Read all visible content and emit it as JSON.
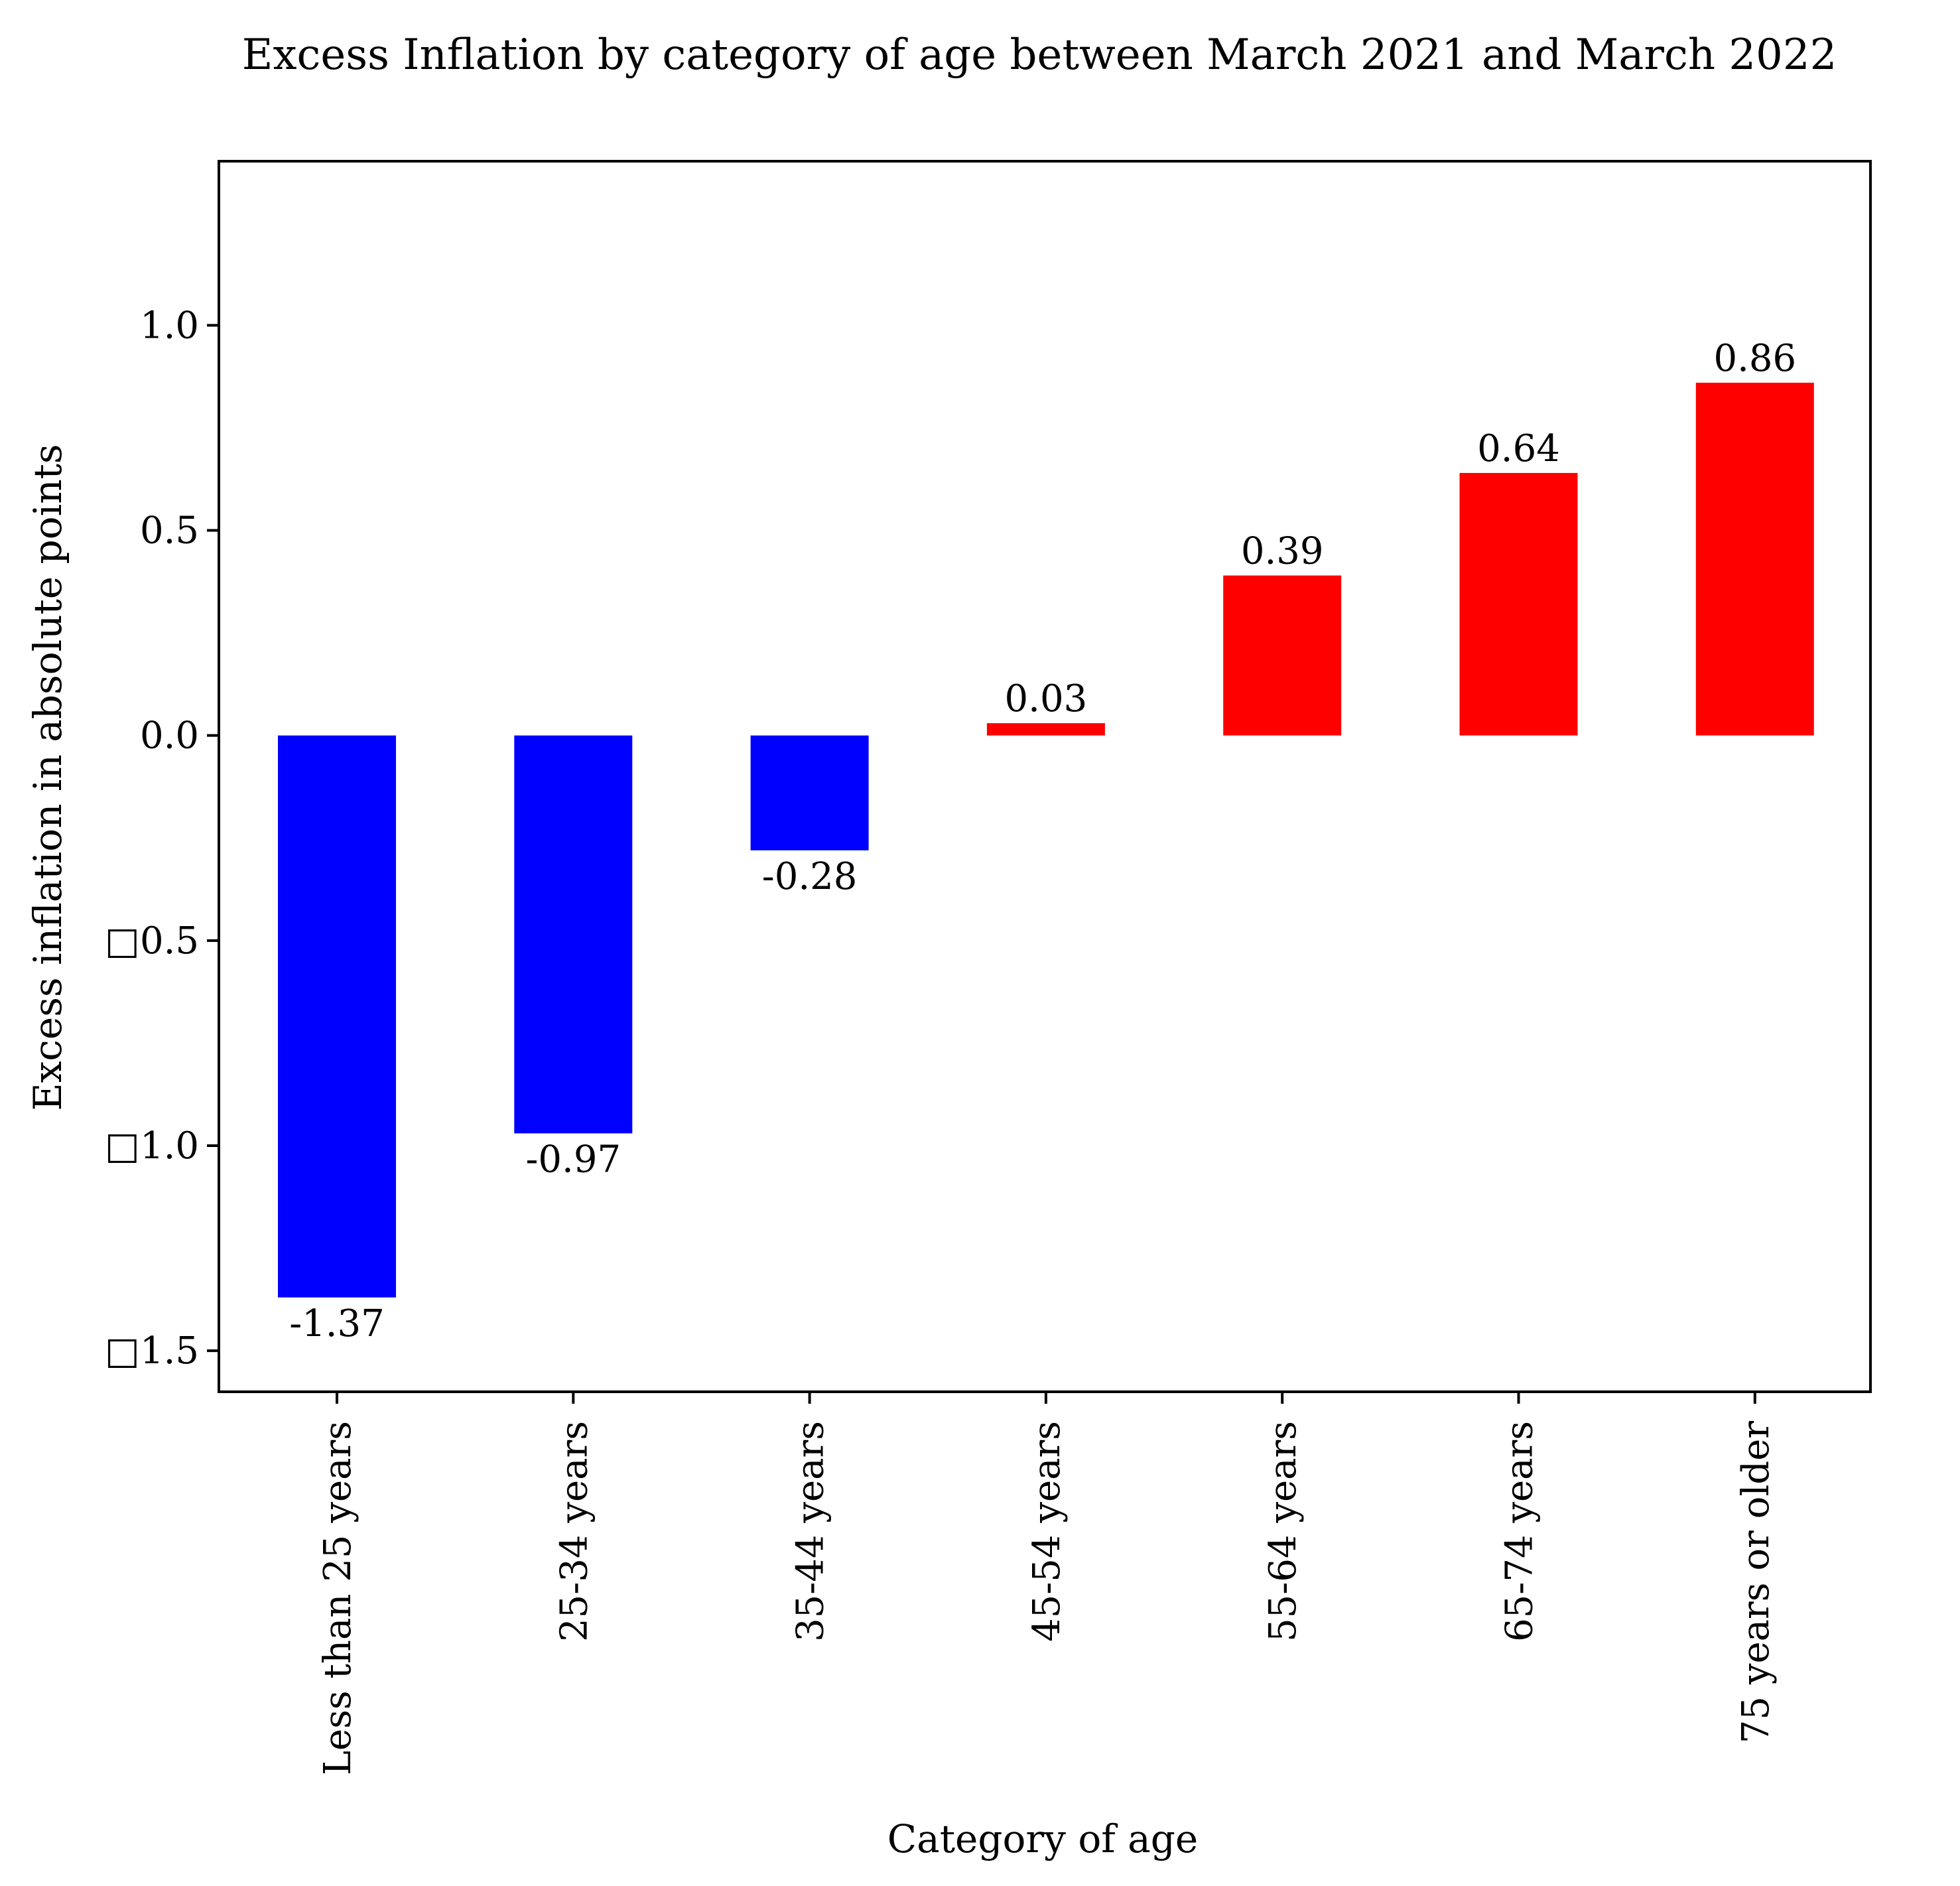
{
  "chart_data": {
    "type": "bar",
    "title": "Excess Inflation by category of age between March 2021 and March 2022",
    "xlabel": "Category of age",
    "ylabel": "Excess inflation in absolute points",
    "categories": [
      "Less than 25 years",
      "25-34 years",
      "35-44 years",
      "45-54 years",
      "55-64 years",
      "65-74 years",
      "75 years or older"
    ],
    "values": [
      -1.37,
      -0.97,
      -0.28,
      0.03,
      0.39,
      0.64,
      0.86
    ],
    "value_labels": [
      "-1.37",
      "-0.97",
      "-0.28",
      "0.03",
      "0.39",
      "0.64",
      "0.86"
    ],
    "ylim": [
      -1.6,
      1.4
    ],
    "yticks": [
      1.0,
      0.5,
      0.0,
      -0.5,
      -1.0,
      -1.5
    ],
    "ytick_labels": [
      "1.0",
      "0.5",
      "0.0",
      "□0.5",
      "□1.0",
      "□1.5"
    ],
    "grid": false,
    "legend": "none",
    "colors": {
      "negative": "#0000ff",
      "positive": "#ff0000"
    }
  }
}
